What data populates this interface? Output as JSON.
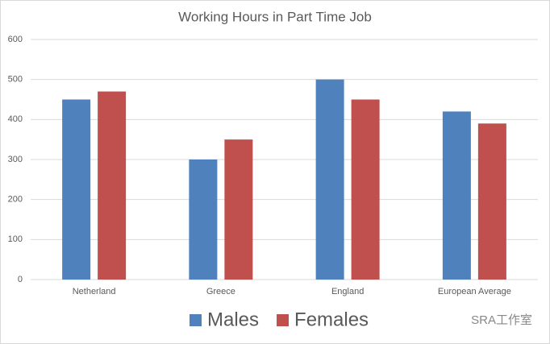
{
  "chart_data": {
    "type": "bar",
    "title": "Working Hours in Part Time Job",
    "categories": [
      "Netherland",
      "Greece",
      "England",
      "European Average"
    ],
    "series": [
      {
        "name": "Males",
        "color": "#4f81bd",
        "values": [
          450,
          300,
          500,
          420
        ]
      },
      {
        "name": "Females",
        "color": "#c0504d",
        "values": [
          470,
          350,
          450,
          390
        ]
      }
    ],
    "ylim": [
      0,
      600
    ],
    "yticks": [
      0,
      100,
      200,
      300,
      400,
      500,
      600
    ],
    "grid": true,
    "legend": "bottom",
    "watermark": "SRA工作室"
  }
}
